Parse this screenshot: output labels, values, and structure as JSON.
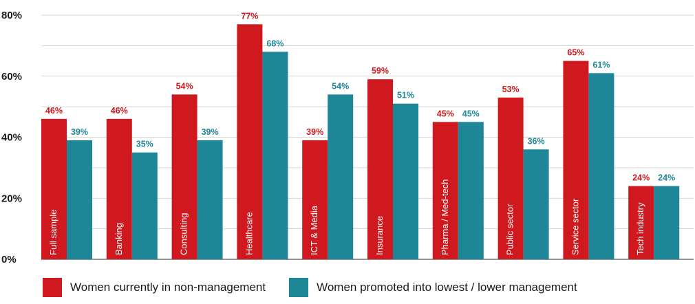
{
  "chart_data": {
    "type": "bar",
    "title": "",
    "xlabel": "",
    "ylabel": "",
    "ylim": [
      0,
      80
    ],
    "yticks": [
      {
        "value": 0,
        "label": "0%"
      },
      {
        "value": 20,
        "label": "20%"
      },
      {
        "value": 40,
        "label": "40%"
      },
      {
        "value": 60,
        "label": "60%"
      },
      {
        "value": 80,
        "label": "80%"
      }
    ],
    "grid": true,
    "legend_position": "bottom",
    "categories": [
      "Full sample",
      "Banking",
      "Consulting",
      "Healthcare",
      "ICT & Media",
      "Insurance",
      "Pharma / Med-tech",
      "Public sector",
      "Service sector",
      "Tech industry"
    ],
    "series": [
      {
        "name": "Women currently in non-management",
        "color": "#d0191e",
        "values": [
          46,
          46,
          54,
          77,
          39,
          59,
          45,
          53,
          65,
          24
        ],
        "labels": [
          "46%",
          "46%",
          "54%",
          "77%",
          "39%",
          "59%",
          "45%",
          "53%",
          "65%",
          "24%"
        ]
      },
      {
        "name": "Women promoted into lowest / lower management",
        "color": "#1e8797",
        "values": [
          39,
          35,
          39,
          68,
          54,
          51,
          45,
          36,
          61,
          24
        ],
        "labels": [
          "39%",
          "35%",
          "39%",
          "68%",
          "54%",
          "51%",
          "45%",
          "36%",
          "61%",
          "24%"
        ]
      }
    ]
  }
}
